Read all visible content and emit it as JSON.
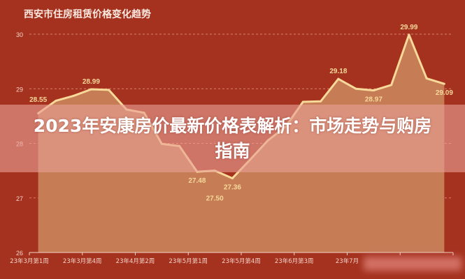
{
  "chart_data": {
    "type": "area",
    "title": "西安市住房租赁价格变化趋势",
    "xlabel": "",
    "ylabel": "",
    "ylim": [
      26,
      30
    ],
    "yticks": [
      26,
      27,
      28,
      29,
      30
    ],
    "grid": true,
    "x_tick_labels": [
      "23年3月第1周",
      "23年3月第4周",
      "23年4月第2周",
      "23年5月第1周",
      "23年5月第4周",
      "23年6月第3周",
      "23年7月"
    ],
    "values": [
      28.55,
      28.78,
      28.87,
      28.99,
      28.98,
      28.62,
      28.56,
      27.99,
      27.95,
      27.48,
      27.5,
      27.36,
      27.7,
      28.05,
      28.3,
      28.76,
      28.77,
      29.18,
      29.0,
      28.97,
      29.07,
      29.99,
      29.19,
      29.09
    ],
    "data_labels": [
      {
        "index": 0,
        "text": "28.55"
      },
      {
        "index": 3,
        "text": "28.99"
      },
      {
        "index": 9,
        "text": "27.48"
      },
      {
        "index": 10,
        "text": "27.50"
      },
      {
        "index": 11,
        "text": "27.36"
      },
      {
        "index": 17,
        "text": "29.18"
      },
      {
        "index": 19,
        "text": "28.97"
      },
      {
        "index": 21,
        "text": "29.99"
      },
      {
        "index": 23,
        "text": "29.09"
      }
    ],
    "colors": {
      "background": "#a5311f",
      "area": "#c67c55",
      "line": "#f7d99a",
      "label": "#f7d99a",
      "axis_text": "#f3d5c8"
    }
  },
  "overlay": {
    "headline": "2023年安康房价最新价格表解析：市场走势与购房指南"
  }
}
